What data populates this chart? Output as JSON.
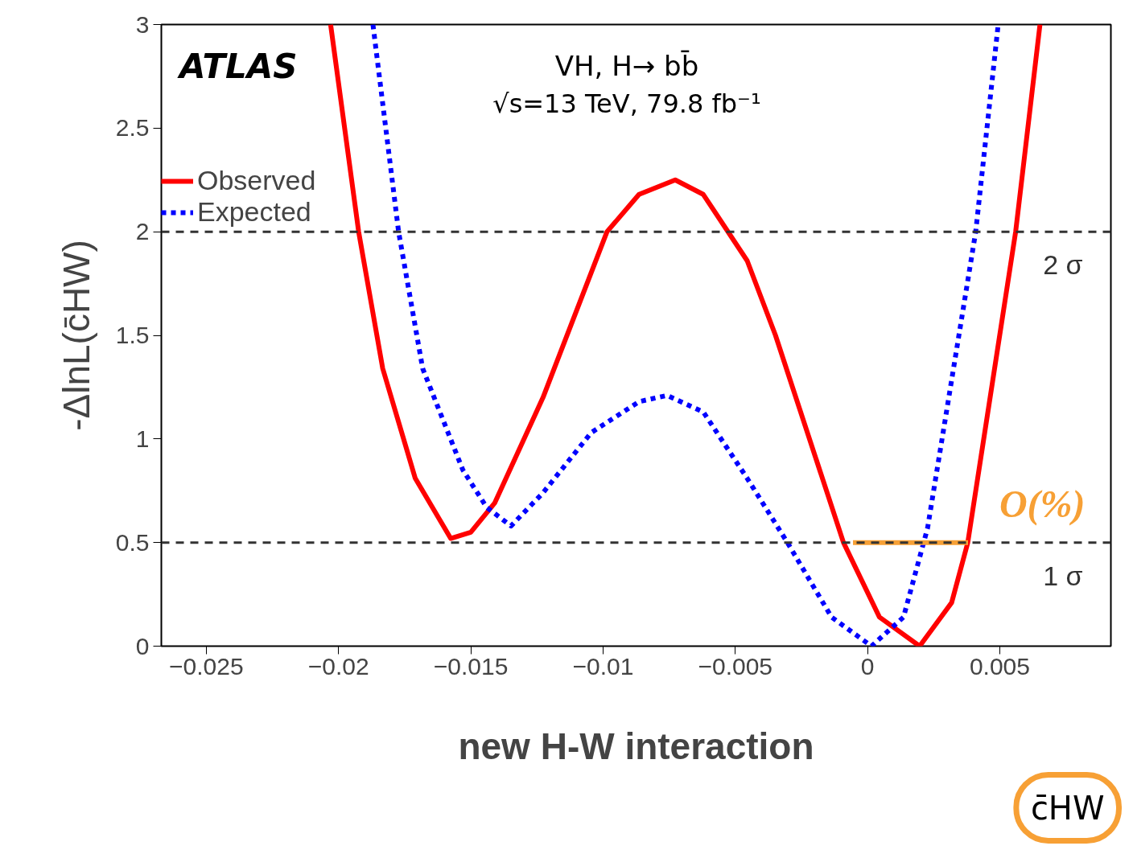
{
  "chart_data": {
    "type": "line",
    "xlabel": "new H-W interaction",
    "ylabel": "-ΔlnL(c̄HW)",
    "xlim": [
      -0.0267,
      0.0092
    ],
    "ylim": [
      0,
      3
    ],
    "xticks": [
      {
        "value": -0.025,
        "label": "−0.025"
      },
      {
        "value": -0.02,
        "label": "−0.02"
      },
      {
        "value": -0.015,
        "label": "−0.015"
      },
      {
        "value": -0.01,
        "label": "−0.01"
      },
      {
        "value": -0.005,
        "label": "−0.005"
      },
      0,
      0.005
    ],
    "yticks": [
      0,
      0.5,
      1,
      1.5,
      2,
      2.5,
      3
    ],
    "grid": false,
    "legend": "top left",
    "series": [
      {
        "name": "Observed",
        "color": "#ff0000",
        "line_style": "solid",
        "x": [
          -0.0203,
          -0.01924,
          -0.01833,
          -0.0171,
          -0.01576,
          -0.015,
          -0.0141,
          -0.01227,
          -0.00985,
          -0.00864,
          -0.00727,
          -0.00621,
          -0.00455,
          -0.00348,
          -0.00091,
          0.00045,
          0.00197,
          0.00318,
          0.00379,
          0.0056,
          0.00652
        ],
        "values": [
          3,
          2.0,
          1.34,
          0.81,
          0.52,
          0.55,
          0.69,
          1.2,
          2.0,
          2.18,
          2.25,
          2.18,
          1.86,
          1.5,
          0.5,
          0.14,
          0,
          0.21,
          0.5,
          2.0,
          3
        ]
      },
      {
        "name": "Expected",
        "color": "#0000ff",
        "line_style": "dotted",
        "x": [
          -0.0187,
          -0.01773,
          -0.01682,
          -0.0153,
          -0.0144,
          -0.01348,
          -0.01227,
          -0.01045,
          -0.00864,
          -0.00758,
          -0.00621,
          -0.00455,
          -0.00303,
          -0.00136,
          0.00015,
          0.00136,
          0.00227,
          0.00348,
          0.00409,
          0.00494
        ],
        "values": [
          3,
          2.0,
          1.34,
          0.85,
          0.67,
          0.58,
          0.74,
          1.03,
          1.18,
          1.21,
          1.13,
          0.81,
          0.5,
          0.14,
          0,
          0.14,
          0.57,
          1.52,
          2.0,
          3
        ]
      },
      {
        "color": "#f7a035",
        "line_style": "solid",
        "x": [
          -0.00055,
          0.0038
        ],
        "values": [
          0.5,
          0.5
        ]
      }
    ],
    "ref_lines": [
      {
        "axis": "y",
        "value": 2,
        "label": "2 σ",
        "color": "#333333",
        "line_style": "dashed"
      },
      {
        "axis": "y",
        "value": 0.5,
        "label": "1 σ",
        "color": "#333333",
        "line_style": "dashed"
      }
    ],
    "annotations": [
      "ATLAS",
      "VH, H→ bb̄",
      "√s=13 TeV, 79.8 fb⁻¹",
      "O(%)",
      "c̄HW"
    ]
  }
}
